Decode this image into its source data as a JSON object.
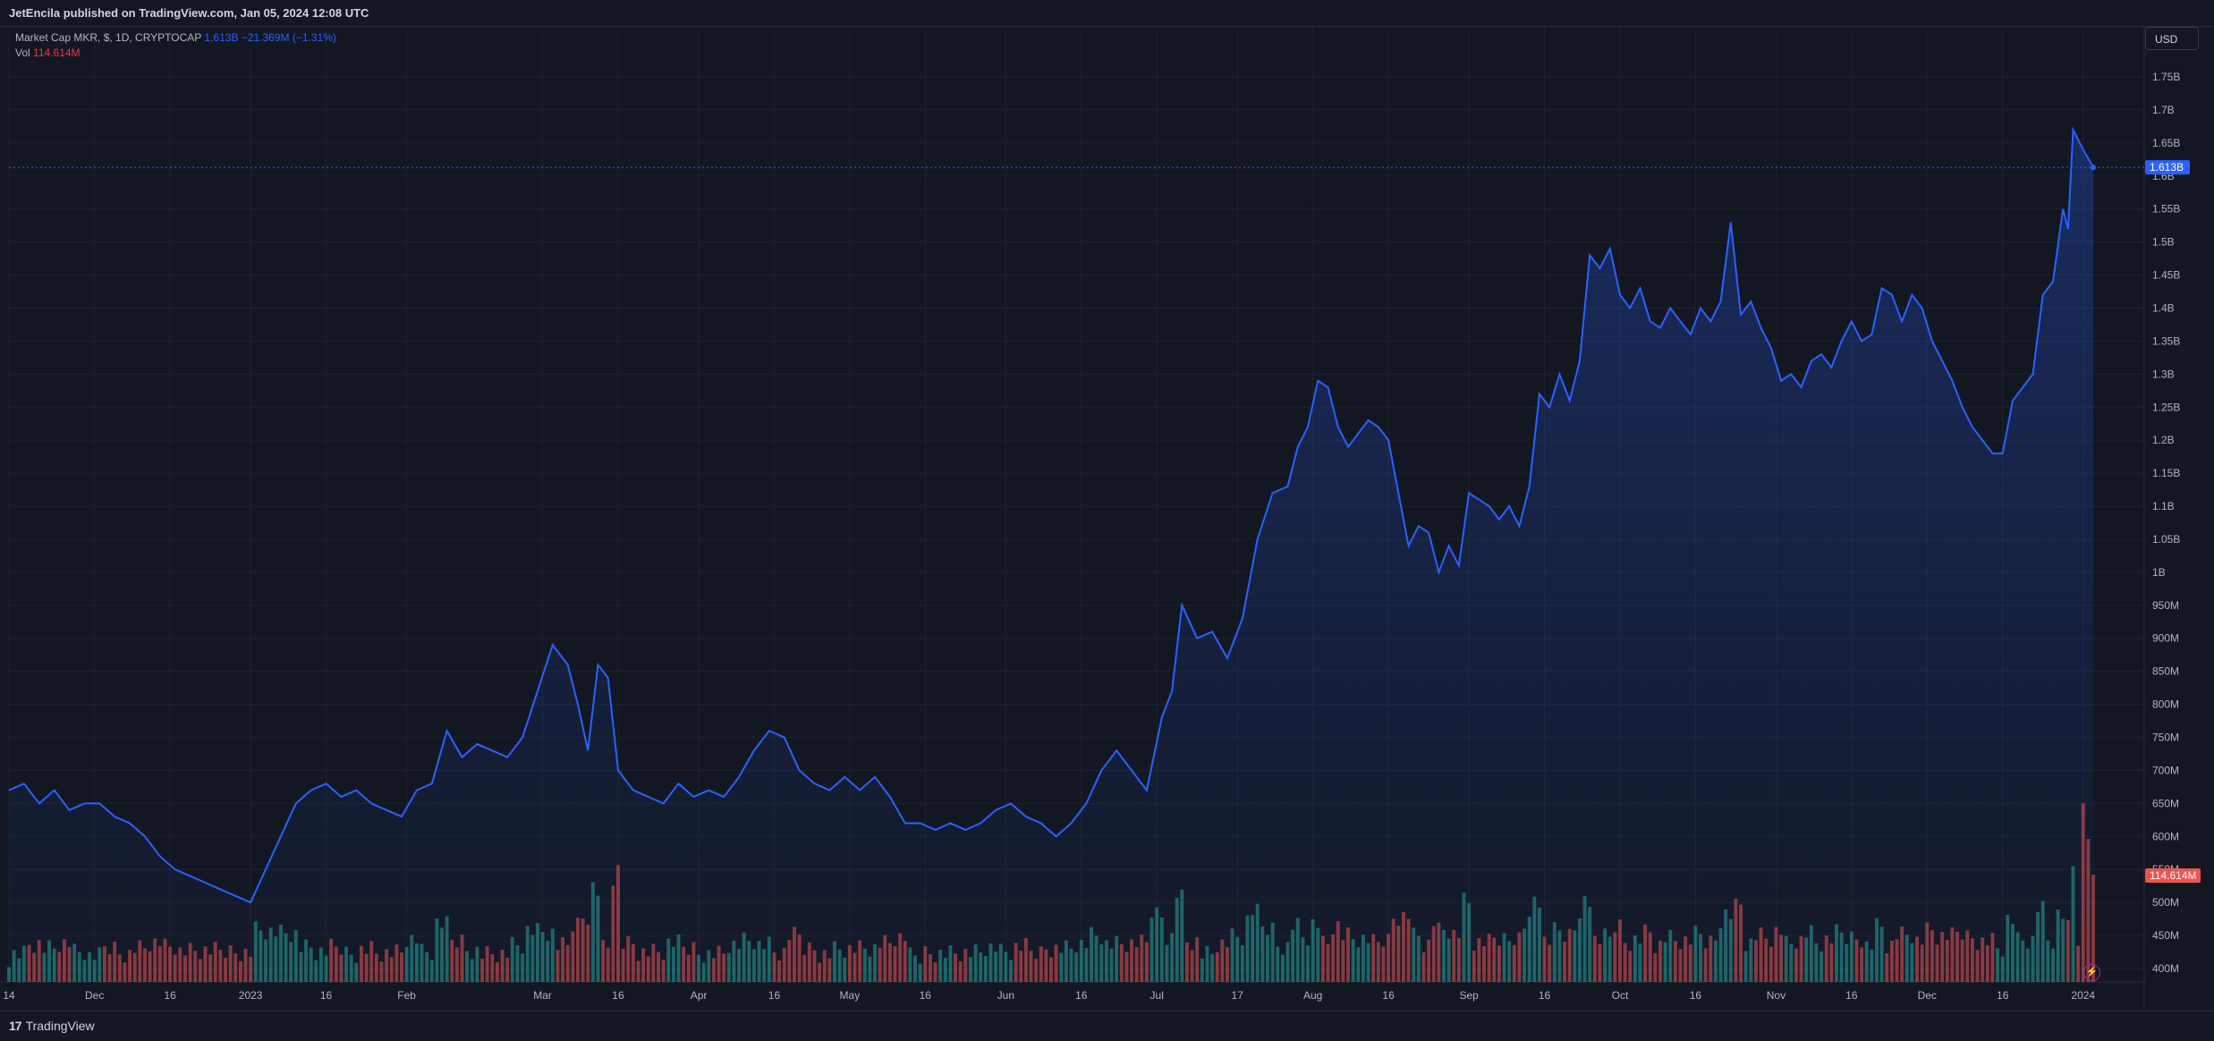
{
  "header": {
    "publisher": "JetEncila published on TradingView.com, Jan 05, 2024 12:08 UTC"
  },
  "legend": {
    "title": "Market Cap MKR, $, 1D, CRYPTOCAP",
    "price": "1.613B",
    "change": "−21.369M (−1.31%)",
    "vol_label": "Vol",
    "vol_value": "114.614M"
  },
  "currency": "USD",
  "footer": {
    "logo_text": "TradingView",
    "logo_mark": "17"
  },
  "icons": {
    "replay": "lightning-icon",
    "logo": "tradingview-logo-icon"
  },
  "colors": {
    "line": "#2962ff",
    "up": "#26a69a",
    "down": "#ef5350",
    "bg": "#131722",
    "grid": "#1e222d"
  },
  "chart_data": {
    "type": "area",
    "title": "Market Cap MKR, $, 1D, CRYPTOCAP",
    "currency": "USD",
    "ylim_billions": [
      0.38,
      1.8
    ],
    "y_ticks": [
      {
        "v": 1.75,
        "label": "1.75B"
      },
      {
        "v": 1.7,
        "label": "1.7B"
      },
      {
        "v": 1.65,
        "label": "1.65B"
      },
      {
        "v": 1.6,
        "label": "1.6B"
      },
      {
        "v": 1.55,
        "label": "1.55B"
      },
      {
        "v": 1.5,
        "label": "1.5B"
      },
      {
        "v": 1.45,
        "label": "1.45B"
      },
      {
        "v": 1.4,
        "label": "1.4B"
      },
      {
        "v": 1.35,
        "label": "1.35B"
      },
      {
        "v": 1.3,
        "label": "1.3B"
      },
      {
        "v": 1.25,
        "label": "1.25B"
      },
      {
        "v": 1.2,
        "label": "1.2B"
      },
      {
        "v": 1.15,
        "label": "1.15B"
      },
      {
        "v": 1.1,
        "label": "1.1B"
      },
      {
        "v": 1.05,
        "label": "1.05B"
      },
      {
        "v": 1.0,
        "label": "1B"
      },
      {
        "v": 0.95,
        "label": "950M"
      },
      {
        "v": 0.9,
        "label": "900M"
      },
      {
        "v": 0.85,
        "label": "850M"
      },
      {
        "v": 0.8,
        "label": "800M"
      },
      {
        "v": 0.75,
        "label": "750M"
      },
      {
        "v": 0.7,
        "label": "700M"
      },
      {
        "v": 0.65,
        "label": "650M"
      },
      {
        "v": 0.6,
        "label": "600M"
      },
      {
        "v": 0.55,
        "label": "550M"
      },
      {
        "v": 0.5,
        "label": "500M"
      },
      {
        "v": 0.45,
        "label": "450M"
      },
      {
        "v": 0.4,
        "label": "400M"
      }
    ],
    "x_ticks": [
      {
        "d": 0,
        "label": "14"
      },
      {
        "d": 17,
        "label": "Dec"
      },
      {
        "d": 32,
        "label": "16"
      },
      {
        "d": 48,
        "label": "2023"
      },
      {
        "d": 63,
        "label": "16"
      },
      {
        "d": 79,
        "label": "Feb"
      },
      {
        "d": 106,
        "label": "Mar"
      },
      {
        "d": 121,
        "label": "16"
      },
      {
        "d": 137,
        "label": "Apr"
      },
      {
        "d": 152,
        "label": "16"
      },
      {
        "d": 167,
        "label": "May"
      },
      {
        "d": 182,
        "label": "16"
      },
      {
        "d": 198,
        "label": "Jun"
      },
      {
        "d": 213,
        "label": "16"
      },
      {
        "d": 228,
        "label": "Jul"
      },
      {
        "d": 244,
        "label": "17"
      },
      {
        "d": 259,
        "label": "Aug"
      },
      {
        "d": 274,
        "label": "16"
      },
      {
        "d": 290,
        "label": "Sep"
      },
      {
        "d": 305,
        "label": "16"
      },
      {
        "d": 320,
        "label": "Oct"
      },
      {
        "d": 335,
        "label": "16"
      },
      {
        "d": 351,
        "label": "Nov"
      },
      {
        "d": 366,
        "label": "16"
      },
      {
        "d": 381,
        "label": "Dec"
      },
      {
        "d": 396,
        "label": "16"
      },
      {
        "d": 412,
        "label": "2024"
      }
    ],
    "last_price_label": "1.613B",
    "last_volume_label": "114.614M",
    "series": [
      {
        "name": "Market Cap MKR",
        "unit": "B",
        "points": [
          [
            0,
            0.67
          ],
          [
            3,
            0.68
          ],
          [
            6,
            0.65
          ],
          [
            9,
            0.67
          ],
          [
            12,
            0.64
          ],
          [
            15,
            0.65
          ],
          [
            18,
            0.65
          ],
          [
            21,
            0.63
          ],
          [
            24,
            0.62
          ],
          [
            27,
            0.6
          ],
          [
            30,
            0.57
          ],
          [
            33,
            0.55
          ],
          [
            36,
            0.54
          ],
          [
            39,
            0.53
          ],
          [
            42,
            0.52
          ],
          [
            45,
            0.51
          ],
          [
            48,
            0.5
          ],
          [
            51,
            0.55
          ],
          [
            54,
            0.6
          ],
          [
            57,
            0.65
          ],
          [
            60,
            0.67
          ],
          [
            63,
            0.68
          ],
          [
            66,
            0.66
          ],
          [
            69,
            0.67
          ],
          [
            72,
            0.65
          ],
          [
            75,
            0.64
          ],
          [
            78,
            0.63
          ],
          [
            81,
            0.67
          ],
          [
            84,
            0.68
          ],
          [
            87,
            0.76
          ],
          [
            90,
            0.72
          ],
          [
            93,
            0.74
          ],
          [
            96,
            0.73
          ],
          [
            99,
            0.72
          ],
          [
            102,
            0.75
          ],
          [
            105,
            0.82
          ],
          [
            108,
            0.89
          ],
          [
            111,
            0.86
          ],
          [
            113,
            0.8
          ],
          [
            115,
            0.73
          ],
          [
            117,
            0.86
          ],
          [
            119,
            0.84
          ],
          [
            121,
            0.7
          ],
          [
            124,
            0.67
          ],
          [
            127,
            0.66
          ],
          [
            130,
            0.65
          ],
          [
            133,
            0.68
          ],
          [
            136,
            0.66
          ],
          [
            139,
            0.67
          ],
          [
            142,
            0.66
          ],
          [
            145,
            0.69
          ],
          [
            148,
            0.73
          ],
          [
            151,
            0.76
          ],
          [
            154,
            0.75
          ],
          [
            157,
            0.7
          ],
          [
            160,
            0.68
          ],
          [
            163,
            0.67
          ],
          [
            166,
            0.69
          ],
          [
            169,
            0.67
          ],
          [
            172,
            0.69
          ],
          [
            175,
            0.66
          ],
          [
            178,
            0.62
          ],
          [
            181,
            0.62
          ],
          [
            184,
            0.61
          ],
          [
            187,
            0.62
          ],
          [
            190,
            0.61
          ],
          [
            193,
            0.62
          ],
          [
            196,
            0.64
          ],
          [
            199,
            0.65
          ],
          [
            202,
            0.63
          ],
          [
            205,
            0.62
          ],
          [
            208,
            0.6
          ],
          [
            211,
            0.62
          ],
          [
            214,
            0.65
          ],
          [
            217,
            0.7
          ],
          [
            220,
            0.73
          ],
          [
            223,
            0.7
          ],
          [
            226,
            0.67
          ],
          [
            229,
            0.78
          ],
          [
            231,
            0.82
          ],
          [
            233,
            0.95
          ],
          [
            236,
            0.9
          ],
          [
            239,
            0.91
          ],
          [
            242,
            0.87
          ],
          [
            245,
            0.93
          ],
          [
            248,
            1.05
          ],
          [
            251,
            1.12
          ],
          [
            254,
            1.13
          ],
          [
            256,
            1.19
          ],
          [
            258,
            1.22
          ],
          [
            260,
            1.29
          ],
          [
            262,
            1.28
          ],
          [
            264,
            1.22
          ],
          [
            266,
            1.19
          ],
          [
            268,
            1.21
          ],
          [
            270,
            1.23
          ],
          [
            272,
            1.22
          ],
          [
            274,
            1.2
          ],
          [
            276,
            1.12
          ],
          [
            278,
            1.04
          ],
          [
            280,
            1.07
          ],
          [
            282,
            1.06
          ],
          [
            284,
            1.0
          ],
          [
            286,
            1.04
          ],
          [
            288,
            1.01
          ],
          [
            290,
            1.12
          ],
          [
            292,
            1.11
          ],
          [
            294,
            1.1
          ],
          [
            296,
            1.08
          ],
          [
            298,
            1.1
          ],
          [
            300,
            1.07
          ],
          [
            302,
            1.13
          ],
          [
            304,
            1.27
          ],
          [
            306,
            1.25
          ],
          [
            308,
            1.3
          ],
          [
            310,
            1.26
          ],
          [
            312,
            1.32
          ],
          [
            314,
            1.48
          ],
          [
            316,
            1.46
          ],
          [
            318,
            1.49
          ],
          [
            320,
            1.42
          ],
          [
            322,
            1.4
          ],
          [
            324,
            1.43
          ],
          [
            326,
            1.38
          ],
          [
            328,
            1.37
          ],
          [
            330,
            1.4
          ],
          [
            332,
            1.38
          ],
          [
            334,
            1.36
          ],
          [
            336,
            1.4
          ],
          [
            338,
            1.38
          ],
          [
            340,
            1.41
          ],
          [
            342,
            1.53
          ],
          [
            344,
            1.39
          ],
          [
            346,
            1.41
          ],
          [
            348,
            1.37
          ],
          [
            350,
            1.34
          ],
          [
            352,
            1.29
          ],
          [
            354,
            1.3
          ],
          [
            356,
            1.28
          ],
          [
            358,
            1.32
          ],
          [
            360,
            1.33
          ],
          [
            362,
            1.31
          ],
          [
            364,
            1.35
          ],
          [
            366,
            1.38
          ],
          [
            368,
            1.35
          ],
          [
            370,
            1.36
          ],
          [
            372,
            1.43
          ],
          [
            374,
            1.42
          ],
          [
            376,
            1.38
          ],
          [
            378,
            1.42
          ],
          [
            380,
            1.4
          ],
          [
            382,
            1.35
          ],
          [
            384,
            1.32
          ],
          [
            386,
            1.29
          ],
          [
            388,
            1.25
          ],
          [
            390,
            1.22
          ],
          [
            392,
            1.2
          ],
          [
            394,
            1.18
          ],
          [
            396,
            1.18
          ],
          [
            398,
            1.26
          ],
          [
            400,
            1.28
          ],
          [
            402,
            1.3
          ],
          [
            404,
            1.42
          ],
          [
            406,
            1.44
          ],
          [
            408,
            1.55
          ],
          [
            409,
            1.52
          ],
          [
            410,
            1.67
          ],
          [
            412,
            1.64
          ],
          [
            414,
            1.613
          ]
        ]
      },
      {
        "name": "Vol",
        "unit": "M",
        "ylim": [
          0,
          1900
        ],
        "values": []
      }
    ]
  }
}
